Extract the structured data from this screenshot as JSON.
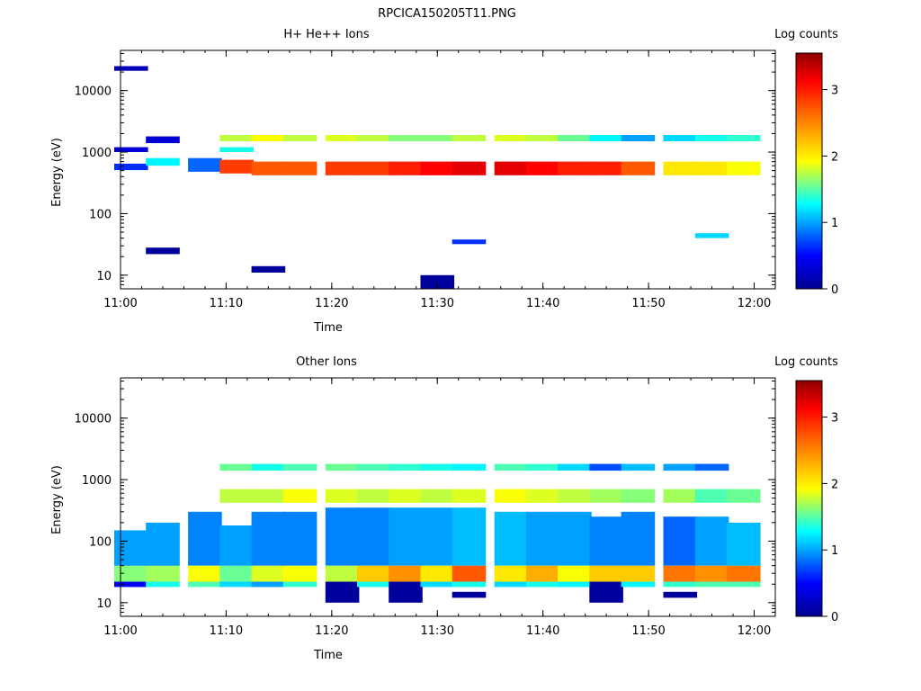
{
  "figure_title": "RPCICA150205T11.PNG",
  "chart_data": [
    {
      "type": "heatmap",
      "title": "H+ He++ Ions",
      "xlabel": "Time",
      "ylabel": "Energy (eV)",
      "x_tick_labels": [
        "11:00",
        "11:10",
        "11:20",
        "11:30",
        "11:40",
        "11:50",
        "12:00"
      ],
      "x_range": [
        "11:00",
        "12:02"
      ],
      "y_scale": "log",
      "y_range": [
        6,
        45000
      ],
      "y_tick_labels": [
        "10",
        "100",
        "1000",
        "10000"
      ],
      "colorbar": {
        "label": "Log counts",
        "range": [
          0,
          3.55
        ],
        "tick_labels": [
          "0",
          "1",
          "2",
          "3"
        ]
      },
      "time_bins": [
        "11:01",
        "11:04",
        "11:08",
        "11:11",
        "11:14",
        "11:17",
        "11:21",
        "11:24",
        "11:27",
        "11:30",
        "11:33",
        "11:37",
        "11:40",
        "11:43",
        "11:46",
        "11:49",
        "11:53",
        "11:56",
        "11:59"
      ],
      "cells": [
        [
          0,
          510,
          650,
          0.6
        ],
        [
          0,
          1000,
          1200,
          0.3
        ],
        [
          0,
          21000,
          25000,
          0.2
        ],
        [
          1,
          1400,
          1800,
          0.3
        ],
        [
          1,
          600,
          800,
          1.3
        ],
        [
          1,
          22,
          28,
          0.1
        ],
        [
          2,
          480,
          800,
          0.8
        ],
        [
          3,
          1500,
          1900,
          2.0
        ],
        [
          3,
          1000,
          1200,
          1.4
        ],
        [
          3,
          450,
          750,
          2.9
        ],
        [
          4,
          1500,
          1900,
          2.2
        ],
        [
          4,
          420,
          700,
          2.8
        ],
        [
          4,
          11,
          14,
          0.1
        ],
        [
          5,
          1500,
          1900,
          2.0
        ],
        [
          5,
          420,
          700,
          2.8
        ],
        [
          6,
          1500,
          1900,
          2.1
        ],
        [
          6,
          420,
          700,
          2.9
        ],
        [
          7,
          1500,
          1900,
          2.0
        ],
        [
          7,
          420,
          700,
          2.9
        ],
        [
          8,
          1500,
          1900,
          1.8
        ],
        [
          8,
          420,
          700,
          3.0
        ],
        [
          9,
          1500,
          1900,
          1.8
        ],
        [
          9,
          420,
          700,
          3.1
        ],
        [
          9,
          6,
          10,
          0.1
        ],
        [
          10,
          1500,
          1900,
          2.0
        ],
        [
          10,
          420,
          700,
          3.2
        ],
        [
          10,
          32,
          38,
          0.6
        ],
        [
          11,
          1500,
          1900,
          2.1
        ],
        [
          11,
          420,
          700,
          3.2
        ],
        [
          12,
          1500,
          1900,
          2.0
        ],
        [
          12,
          420,
          700,
          3.1
        ],
        [
          13,
          1500,
          1900,
          1.7
        ],
        [
          13,
          420,
          700,
          3.0
        ],
        [
          14,
          1500,
          1900,
          1.3
        ],
        [
          14,
          420,
          700,
          3.0
        ],
        [
          15,
          1500,
          1900,
          1.0
        ],
        [
          15,
          420,
          700,
          2.8
        ],
        [
          16,
          1500,
          1900,
          1.2
        ],
        [
          16,
          420,
          700,
          2.3
        ],
        [
          17,
          1500,
          1900,
          1.4
        ],
        [
          17,
          420,
          700,
          2.3
        ],
        [
          17,
          40,
          48,
          1.2
        ],
        [
          18,
          1500,
          1900,
          1.5
        ],
        [
          18,
          420,
          700,
          2.2
        ]
      ]
    },
    {
      "type": "heatmap",
      "title": "Other Ions",
      "xlabel": "Time",
      "ylabel": "Energy (eV)",
      "x_tick_labels": [
        "11:00",
        "11:10",
        "11:20",
        "11:30",
        "11:40",
        "11:50",
        "12:00"
      ],
      "x_range": [
        "11:00",
        "12:02"
      ],
      "y_scale": "log",
      "y_range": [
        6,
        45000
      ],
      "y_tick_labels": [
        "10",
        "100",
        "1000",
        "10000"
      ],
      "colorbar": {
        "label": "Log counts",
        "range": [
          0,
          3.55
        ],
        "tick_labels": [
          "0",
          "1",
          "2",
          "3"
        ]
      },
      "time_bins": [
        "11:01",
        "11:04",
        "11:08",
        "11:11",
        "11:14",
        "11:17",
        "11:21",
        "11:24",
        "11:27",
        "11:30",
        "11:33",
        "11:37",
        "11:40",
        "11:43",
        "11:46",
        "11:49",
        "11:53",
        "11:56",
        "11:59"
      ],
      "cells": [
        [
          0,
          18,
          22,
          0.4
        ],
        [
          0,
          22,
          40,
          1.8
        ],
        [
          0,
          40,
          150,
          1.0
        ],
        [
          1,
          18,
          22,
          1.4
        ],
        [
          1,
          22,
          40,
          1.9
        ],
        [
          1,
          40,
          200,
          1.0
        ],
        [
          2,
          18,
          22,
          1.6
        ],
        [
          2,
          22,
          40,
          2.2
        ],
        [
          2,
          40,
          300,
          0.9
        ],
        [
          3,
          18,
          22,
          1.2
        ],
        [
          3,
          22,
          40,
          1.7
        ],
        [
          3,
          40,
          180,
          1.0
        ],
        [
          3,
          420,
          700,
          2.0
        ],
        [
          3,
          1400,
          1800,
          1.7
        ],
        [
          4,
          18,
          22,
          1.0
        ],
        [
          4,
          22,
          40,
          2.1
        ],
        [
          4,
          40,
          300,
          0.9
        ],
        [
          4,
          420,
          700,
          2.0
        ],
        [
          4,
          1400,
          1800,
          1.4
        ],
        [
          5,
          18,
          22,
          1.5
        ],
        [
          5,
          22,
          40,
          2.2
        ],
        [
          5,
          40,
          300,
          0.9
        ],
        [
          5,
          420,
          700,
          2.2
        ],
        [
          5,
          1400,
          1800,
          1.6
        ],
        [
          6,
          10,
          22,
          0.1
        ],
        [
          6,
          22,
          40,
          2.0
        ],
        [
          6,
          40,
          350,
          0.9
        ],
        [
          6,
          420,
          700,
          2.1
        ],
        [
          6,
          1400,
          1800,
          1.7
        ],
        [
          7,
          18,
          22,
          1.4
        ],
        [
          7,
          22,
          40,
          2.4
        ],
        [
          7,
          40,
          350,
          0.9
        ],
        [
          7,
          420,
          700,
          2.0
        ],
        [
          7,
          1400,
          1800,
          1.6
        ],
        [
          8,
          10,
          22,
          0.1
        ],
        [
          8,
          22,
          40,
          2.6
        ],
        [
          8,
          40,
          350,
          1.0
        ],
        [
          8,
          420,
          700,
          2.1
        ],
        [
          8,
          1400,
          1800,
          1.5
        ],
        [
          9,
          18,
          22,
          1.2
        ],
        [
          9,
          22,
          40,
          2.3
        ],
        [
          9,
          40,
          350,
          1.0
        ],
        [
          9,
          420,
          700,
          2.0
        ],
        [
          9,
          1400,
          1800,
          1.4
        ],
        [
          10,
          12,
          15,
          0.1
        ],
        [
          10,
          18,
          22,
          1.4
        ],
        [
          10,
          22,
          40,
          2.8
        ],
        [
          10,
          40,
          350,
          1.1
        ],
        [
          10,
          420,
          700,
          2.1
        ],
        [
          10,
          1400,
          1800,
          1.3
        ],
        [
          11,
          18,
          22,
          1.2
        ],
        [
          11,
          22,
          40,
          2.3
        ],
        [
          11,
          40,
          300,
          1.1
        ],
        [
          11,
          420,
          700,
          2.2
        ],
        [
          11,
          1400,
          1800,
          1.6
        ],
        [
          12,
          18,
          22,
          1.4
        ],
        [
          12,
          22,
          40,
          2.5
        ],
        [
          12,
          40,
          300,
          1.0
        ],
        [
          12,
          420,
          700,
          2.1
        ],
        [
          12,
          1400,
          1800,
          1.5
        ],
        [
          13,
          18,
          22,
          1.3
        ],
        [
          13,
          22,
          40,
          2.2
        ],
        [
          13,
          40,
          300,
          1.0
        ],
        [
          13,
          420,
          700,
          2.0
        ],
        [
          13,
          1400,
          1800,
          1.2
        ],
        [
          14,
          10,
          22,
          0.1
        ],
        [
          14,
          22,
          40,
          2.4
        ],
        [
          14,
          40,
          250,
          0.9
        ],
        [
          14,
          420,
          700,
          1.9
        ],
        [
          14,
          1400,
          1800,
          0.7
        ],
        [
          15,
          18,
          22,
          1.3
        ],
        [
          15,
          22,
          40,
          2.4
        ],
        [
          15,
          40,
          300,
          0.9
        ],
        [
          15,
          420,
          700,
          1.8
        ],
        [
          15,
          1400,
          1800,
          1.1
        ],
        [
          16,
          12,
          15,
          0.1
        ],
        [
          16,
          18,
          22,
          1.5
        ],
        [
          16,
          22,
          40,
          2.7
        ],
        [
          16,
          40,
          250,
          0.8
        ],
        [
          16,
          420,
          700,
          1.9
        ],
        [
          16,
          1400,
          1800,
          1.0
        ],
        [
          17,
          18,
          22,
          1.6
        ],
        [
          17,
          22,
          40,
          2.6
        ],
        [
          17,
          40,
          250,
          1.0
        ],
        [
          17,
          420,
          700,
          1.6
        ],
        [
          17,
          1400,
          1800,
          0.8
        ],
        [
          18,
          18,
          22,
          1.6
        ],
        [
          18,
          22,
          40,
          2.7
        ],
        [
          18,
          40,
          200,
          1.1
        ],
        [
          18,
          420,
          700,
          1.7
        ]
      ]
    }
  ]
}
